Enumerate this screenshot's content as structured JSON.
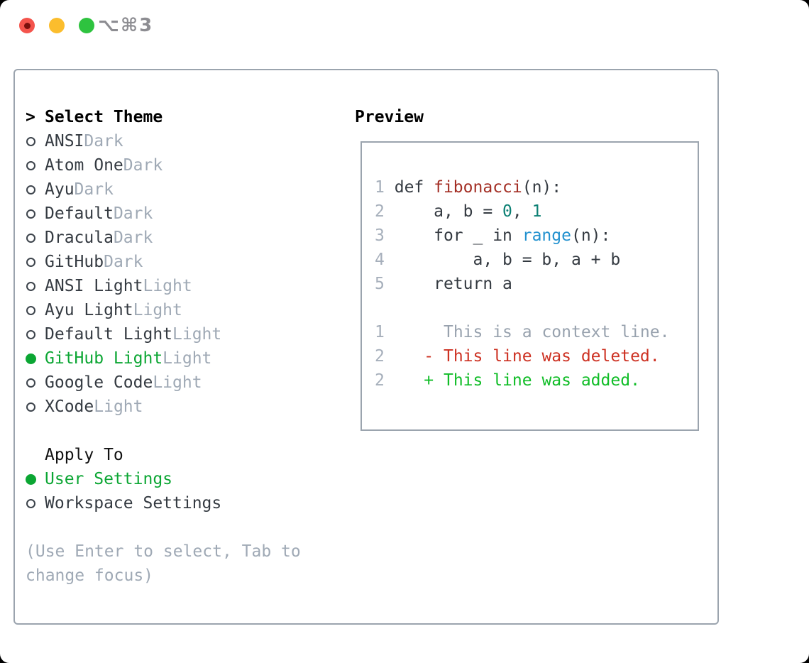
{
  "window": {
    "title_shortcut": "⌥⌘3"
  },
  "colors": {
    "tl_close": "#f4544c",
    "tl_close_dot": "#7a100c",
    "tl_minimize": "#fbbd2d",
    "tl_zoom": "#2ec33f",
    "title_text": "#8d8d92",
    "panel_border": "#9ba4ae",
    "heading": "#000000",
    "text": "#343a41",
    "muted": "#9fa9b5",
    "ring": "#3d444c",
    "selected_green": "#0ba633",
    "line_number": "#a6afbb",
    "code_default": "#343a41",
    "code_function": "#a32e24",
    "code_number": "#0c8074",
    "code_builtin": "#2291cf",
    "diff_context": "#98a2ae",
    "diff_deleted": "#cd3122",
    "diff_added": "#10bd27"
  },
  "theme_picker": {
    "prompt": ">",
    "title": "Select Theme",
    "items": [
      {
        "name": "ANSI",
        "variant": "Dark",
        "selected": false
      },
      {
        "name": "Atom One",
        "variant": "Dark",
        "selected": false
      },
      {
        "name": "Ayu",
        "variant": "Dark",
        "selected": false
      },
      {
        "name": "Default",
        "variant": "Dark",
        "selected": false
      },
      {
        "name": "Dracula",
        "variant": "Dark",
        "selected": false
      },
      {
        "name": "GitHub",
        "variant": "Dark",
        "selected": false
      },
      {
        "name": "ANSI Light",
        "variant": "Light",
        "selected": false
      },
      {
        "name": "Ayu Light",
        "variant": "Light",
        "selected": false
      },
      {
        "name": "Default Light",
        "variant": "Light",
        "selected": false
      },
      {
        "name": "GitHub Light",
        "variant": "Light",
        "selected": true
      },
      {
        "name": "Google Code",
        "variant": "Light",
        "selected": false
      },
      {
        "name": "XCode",
        "variant": "Light",
        "selected": false
      }
    ],
    "apply_to": {
      "title": "Apply To",
      "options": [
        {
          "label": "User Settings",
          "selected": true
        },
        {
          "label": "Workspace Settings",
          "selected": false
        }
      ]
    },
    "hint_lines": [
      "(Use Enter to select, Tab to",
      "change focus)"
    ]
  },
  "preview": {
    "title": "Preview",
    "code_lines": [
      {
        "num": "1",
        "tokens": [
          {
            "text": "def ",
            "style": "default"
          },
          {
            "text": "fibonacci",
            "style": "function"
          },
          {
            "text": "(n):",
            "style": "default"
          }
        ]
      },
      {
        "num": "2",
        "tokens": [
          {
            "text": "    a, b = ",
            "style": "default"
          },
          {
            "text": "0",
            "style": "number"
          },
          {
            "text": ", ",
            "style": "default"
          },
          {
            "text": "1",
            "style": "number"
          }
        ]
      },
      {
        "num": "3",
        "tokens": [
          {
            "text": "    for _ in ",
            "style": "default"
          },
          {
            "text": "range",
            "style": "builtin"
          },
          {
            "text": "(n):",
            "style": "default"
          }
        ]
      },
      {
        "num": "4",
        "tokens": [
          {
            "text": "        a, b = b, a + b",
            "style": "default"
          }
        ]
      },
      {
        "num": "5",
        "tokens": [
          {
            "text": "    return a",
            "style": "default"
          }
        ]
      }
    ],
    "diff_lines": [
      {
        "num": "1",
        "marker": " ",
        "text": "This is a context line.",
        "kind": "context"
      },
      {
        "num": "2",
        "marker": "-",
        "text": "This line was deleted.",
        "kind": "deleted"
      },
      {
        "num": "2",
        "marker": "+",
        "text": "This line was added.",
        "kind": "added"
      }
    ]
  }
}
